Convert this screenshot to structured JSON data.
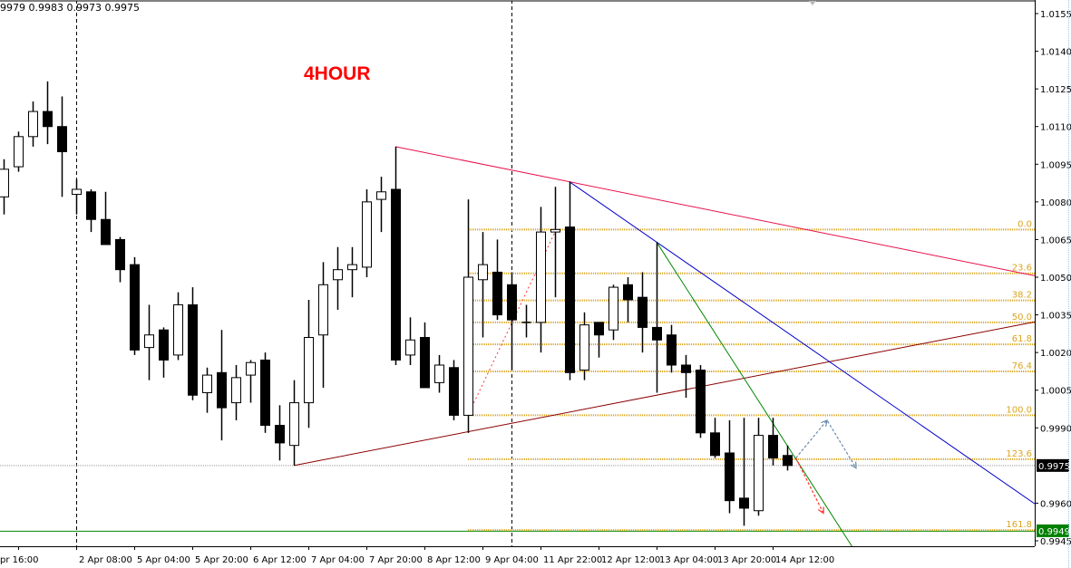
{
  "header": {
    "ohlc_text": "9979 0.9983 0.9973 0.9975",
    "timeframe_label": "4HOUR"
  },
  "colors": {
    "bull_body": "#ffffff",
    "bear_body": "#000000",
    "fib": "#daa520",
    "upper_trend": "#e8114a",
    "lower_trend": "#8b0000",
    "blue_trend": "#0000cc",
    "green_trend": "#008800",
    "bid_label_bg": "#000000",
    "level_label_bg": "#008000",
    "projection": "#6b8cad",
    "projection_down": "#ff3333"
  },
  "chart_data": {
    "type": "candlestick",
    "yaxis": {
      "ticks": [
        "1.0155",
        "1.0140",
        "1.0125",
        "1.0110",
        "1.0095",
        "1.0080",
        "1.0065",
        "1.0050",
        "1.0035",
        "1.0020",
        "1.0005",
        "0.9990",
        "0.9960",
        "0.9945"
      ],
      "range": [
        0.9939,
        1.016
      ]
    },
    "xaxis": {
      "ticks": [
        {
          "bar": 1,
          "label": "pr 16:00"
        },
        {
          "bar": 5,
          "label": "2 Apr 08:00"
        },
        {
          "bar": 9,
          "label": "5 Apr 04:00"
        },
        {
          "bar": 13,
          "label": "5 Apr 20:00"
        },
        {
          "bar": 17,
          "label": "6 Apr 12:00"
        },
        {
          "bar": 21,
          "label": "7 Apr 04:00"
        },
        {
          "bar": 25,
          "label": "7 Apr 20:00"
        },
        {
          "bar": 29,
          "label": "8 Apr 12:00"
        },
        {
          "bar": 33,
          "label": "9 Apr 04:00"
        },
        {
          "bar": 37,
          "label": "11 Apr 22:00"
        },
        {
          "bar": 41,
          "label": "12 Apr 12:00"
        },
        {
          "bar": 45,
          "label": "13 Apr 04:00"
        },
        {
          "bar": 49,
          "label": "13 Apr 20:00"
        },
        {
          "bar": 53,
          "label": "14 Apr 12:00"
        }
      ]
    },
    "period_separators": [
      5,
      35
    ],
    "candles": [
      [
        1.0082,
        1.0097,
        1.0075,
        1.0093
      ],
      [
        1.0094,
        1.0108,
        1.0092,
        1.0106
      ],
      [
        1.0106,
        1.012,
        1.0102,
        1.0116
      ],
      [
        1.0116,
        1.0128,
        1.0103,
        1.011
      ],
      [
        1.011,
        1.0122,
        1.0082,
        1.01
      ],
      [
        1.0083,
        1.0089,
        1.0075,
        1.0085
      ],
      [
        1.0084,
        1.0085,
        1.0068,
        1.0073
      ],
      [
        1.0073,
        1.0084,
        1.0063,
        1.0063
      ],
      [
        1.0065,
        1.0066,
        1.0048,
        1.0053
      ],
      [
        1.0055,
        1.0058,
        1.0019,
        1.0021
      ],
      [
        1.0022,
        1.0039,
        1.0009,
        1.0027
      ],
      [
        1.0029,
        1.003,
        1.001,
        1.0017
      ],
      [
        1.0019,
        1.0044,
        1.0017,
        1.0039
      ],
      [
        1.0039,
        1.0046,
        1.0001,
        1.0003
      ],
      [
        1.0004,
        1.0014,
        0.9996,
        1.0011
      ],
      [
        1.0012,
        1.0029,
        0.9985,
        0.9998
      ],
      [
        1.0,
        1.0015,
        0.9993,
        1.001
      ],
      [
        1.0011,
        1.0017,
        1.0,
        1.0016
      ],
      [
        1.0017,
        1.002,
        0.9988,
        0.9991
      ],
      [
        0.9991,
        0.9999,
        0.9977,
        0.9984
      ],
      [
        0.9983,
        1.0009,
        0.9975,
        1.0
      ],
      [
        1.0,
        1.0041,
        0.999,
        1.0026
      ],
      [
        1.0027,
        1.0056,
        1.0006,
        1.0047
      ],
      [
        1.0049,
        1.0062,
        1.0037,
        1.0053
      ],
      [
        1.0053,
        1.0062,
        1.0042,
        1.0055
      ],
      [
        1.0054,
        1.0085,
        1.005,
        1.008
      ],
      [
        1.0081,
        1.009,
        1.0068,
        1.0084
      ],
      [
        1.0085,
        1.0102,
        1.0015,
        1.0017
      ],
      [
        1.0019,
        1.0034,
        1.0015,
        1.0025
      ],
      [
        1.0026,
        1.0032,
        1.0006,
        1.0006
      ],
      [
        1.0008,
        1.0019,
        1.0004,
        1.0015
      ],
      [
        1.0014,
        1.0017,
        0.9993,
        0.9995
      ],
      [
        0.9995,
        1.0081,
        0.9988,
        1.005
      ],
      [
        1.0049,
        1.0068,
        1.0026,
        1.0055
      ],
      [
        1.0052,
        1.0065,
        1.0033,
        1.0035
      ],
      [
        1.0047,
        1.0052,
        1.0013,
        1.0033
      ],
      [
        1.0032,
        1.0039,
        1.0026,
        1.0032
      ],
      [
        1.0032,
        1.0078,
        1.002,
        1.0068
      ],
      [
        1.0068,
        1.0086,
        1.0042,
        1.0069
      ],
      [
        1.007,
        1.0088,
        1.0009,
        1.0012
      ],
      [
        1.0013,
        1.0036,
        1.0009,
        1.0031
      ],
      [
        1.0032,
        1.0032,
        1.0018,
        1.0027
      ],
      [
        1.0029,
        1.0047,
        1.0025,
        1.0046
      ],
      [
        1.0047,
        1.005,
        1.0032,
        1.0041
      ],
      [
        1.0042,
        1.0052,
        1.002,
        1.003
      ],
      [
        1.003,
        1.0064,
        1.0004,
        1.0025
      ],
      [
        1.0027,
        1.0031,
        1.0012,
        1.0015
      ],
      [
        1.0015,
        1.0019,
        1.0002,
        1.0012
      ],
      [
        1.0013,
        1.0015,
        0.9986,
        0.9988
      ],
      [
        0.9988,
        0.9994,
        0.9978,
        0.9979
      ],
      [
        0.998,
        0.9993,
        0.9956,
        0.9961
      ],
      [
        0.9962,
        0.9994,
        0.9951,
        0.9958
      ],
      [
        0.9957,
        0.9994,
        0.9955,
        0.9987
      ],
      [
        0.9987,
        0.9994,
        0.9975,
        0.9978
      ],
      [
        0.9979,
        0.9983,
        0.9973,
        0.9975
      ]
    ],
    "candle_format": [
      "open",
      "high",
      "low",
      "close"
    ],
    "fibonacci": {
      "start_bar": 32,
      "price_0": 1.0069,
      "price_100": 0.9995,
      "levels": [
        {
          "ratio": 0.0,
          "label": "0.0"
        },
        {
          "ratio": 23.6,
          "label": "23.6"
        },
        {
          "ratio": 38.2,
          "label": "38.2"
        },
        {
          "ratio": 50.0,
          "label": "50.0"
        },
        {
          "ratio": 61.8,
          "label": "61.8"
        },
        {
          "ratio": 76.4,
          "label": "76.4"
        },
        {
          "ratio": 100.0,
          "label": "100.0"
        },
        {
          "ratio": 123.6,
          "label": "123.6"
        },
        {
          "ratio": 161.8,
          "label": "161.8"
        }
      ]
    },
    "trendlines": [
      {
        "color_key": "upper_trend",
        "p1": [
          27,
          1.0102
        ],
        "p2": [
          39,
          1.0088
        ],
        "ray": true
      },
      {
        "color_key": "lower_trend",
        "p1": [
          20,
          0.9975
        ],
        "p2": [
          45,
          1.0003
        ],
        "ray": true
      },
      {
        "color_key": "blue_trend",
        "p1": [
          39,
          1.0088
        ],
        "p2": [
          45,
          1.0064
        ],
        "ray": true
      },
      {
        "color_key": "green_trend",
        "p1": [
          45,
          1.0064
        ],
        "p2": [
          53,
          0.9992
        ],
        "ray": true
      },
      {
        "color_key": "projection_down",
        "p1": [
          32,
          0.9995
        ],
        "p2": [
          38,
          1.0068
        ],
        "ray": false,
        "dotted": true
      }
    ],
    "projections": [
      {
        "color_key": "projection",
        "points": [
          [
            54.6,
            0.9978
          ],
          [
            56.75,
            0.9993
          ],
          [
            58.75,
            0.9974
          ]
        ]
      },
      {
        "color_key": "projection_down",
        "points": [
          [
            54.6,
            0.9978
          ],
          [
            56.5,
            0.9956
          ]
        ]
      }
    ],
    "bid": {
      "price": 0.9975,
      "label": "0.9975"
    },
    "support_level": {
      "price": 0.9949,
      "label": "0.9949"
    }
  }
}
